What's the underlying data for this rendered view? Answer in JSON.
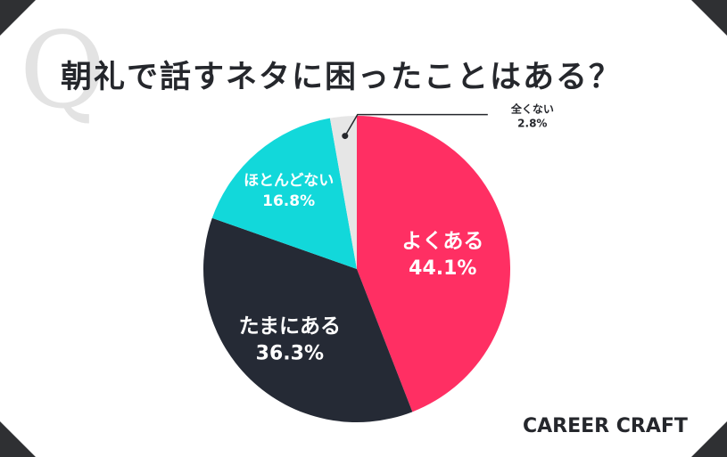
{
  "title": "朝礼で話すネタに困ったことはある？",
  "watermark": "Q",
  "brand": "CAREER CRAFT",
  "chart_data": {
    "type": "pie",
    "title": "朝礼で話すネタに困ったことはある？",
    "slices": [
      {
        "label": "よくある",
        "value": 44.1,
        "display": "44.1%",
        "color": "#ff2f63",
        "text_color": "#ffffff"
      },
      {
        "label": "たまにある",
        "value": 36.3,
        "display": "36.3%",
        "color": "#252a35",
        "text_color": "#ffffff"
      },
      {
        "label": "ほとんどない",
        "value": 16.8,
        "display": "16.8%",
        "color": "#12d8da",
        "text_color": "#ffffff"
      },
      {
        "label": "全くない",
        "value": 2.8,
        "display": "2.8%",
        "color": "#e6e6e6",
        "text_color": "#25272c"
      }
    ],
    "start": "12 o'clock, clockwise"
  }
}
